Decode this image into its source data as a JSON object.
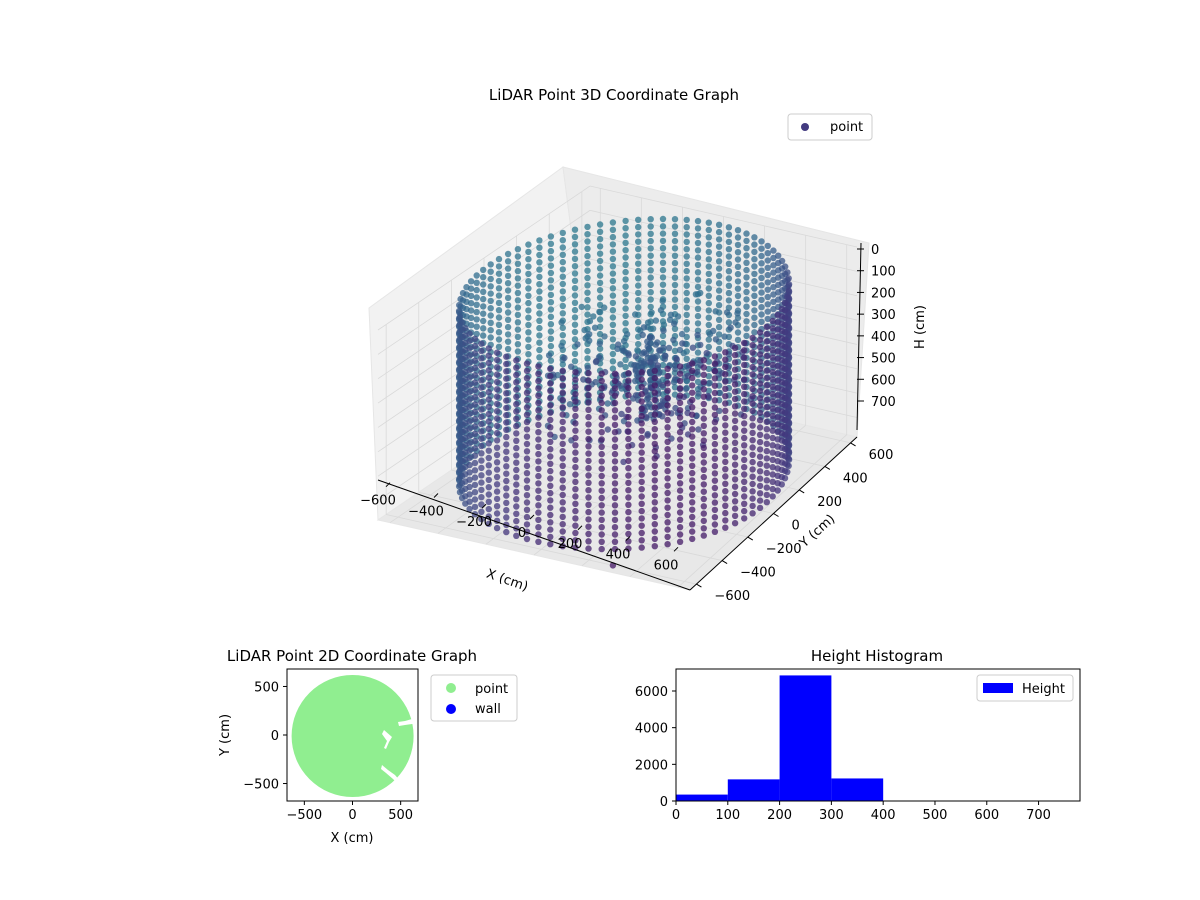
{
  "chart_data": [
    {
      "type": "scatter",
      "projection": "3d",
      "title": "LiDAR Point 3D Coordinate Graph",
      "xlabel": "X (cm)",
      "ylabel": "Y (cm)",
      "zlabel": "H (cm)",
      "xlim": [
        -650,
        650
      ],
      "ylim": [
        -650,
        650
      ],
      "zlim": [
        780,
        0
      ],
      "xticks": [
        -600,
        -400,
        -200,
        0,
        200,
        400,
        600
      ],
      "yticks": [
        -600,
        -400,
        -200,
        0,
        200,
        400,
        600
      ],
      "zticks": [
        0,
        100,
        200,
        300,
        400,
        500,
        600,
        700
      ],
      "grid": true,
      "legend": {
        "placement": "top-right",
        "entries": [
          {
            "label": "point",
            "color": "#433b80"
          }
        ]
      },
      "colormap": "viridis",
      "series": [
        {
          "name": "point",
          "structure": "cylindrical wall of points, radius ~620 cm, heights ~0-760 cm, with interior clutter",
          "wall_radius": 620,
          "height_range": [
            0,
            760
          ],
          "outlier": {
            "x": 300,
            "y": -600,
            "h": 780
          }
        }
      ]
    },
    {
      "type": "scatter",
      "title": "LiDAR Point 2D Coordinate Graph",
      "xlabel": "X (cm)",
      "ylabel": "Y (cm)",
      "xlim": [
        -680,
        680
      ],
      "ylim": [
        -680,
        680
      ],
      "xticks": [
        -500,
        0,
        500
      ],
      "yticks": [
        -500,
        0,
        500
      ],
      "xtick_labels": [
        "−500",
        "0",
        "500"
      ],
      "ytick_labels": [
        "−500",
        "0",
        "500"
      ],
      "legend": {
        "placement": "outside-right",
        "entries": [
          {
            "label": "point",
            "color": "#90ee90"
          },
          {
            "label": "wall",
            "color": "#0000ff"
          }
        ]
      },
      "series": [
        {
          "name": "point",
          "color": "#90ee90",
          "shape": "filled disc",
          "center": [
            0,
            0
          ],
          "radius": 620
        },
        {
          "name": "wall",
          "color": "#0000ff",
          "points": []
        }
      ]
    },
    {
      "type": "bar",
      "title": "Height Histogram",
      "xlim": [
        0,
        780
      ],
      "ylim": [
        0,
        7200
      ],
      "xticks": [
        0,
        100,
        200,
        300,
        400,
        500,
        600,
        700
      ],
      "yticks": [
        0,
        2000,
        4000,
        6000
      ],
      "legend": {
        "placement": "top-right",
        "entries": [
          {
            "label": "Height",
            "color": "#0000ff"
          }
        ]
      },
      "series": [
        {
          "name": "Height",
          "color": "#0000ff",
          "bins": [
            [
              0,
              100
            ],
            [
              100,
              200
            ],
            [
              200,
              300
            ],
            [
              300,
              400
            ],
            [
              400,
              500
            ],
            [
              500,
              600
            ],
            [
              600,
              700
            ],
            [
              700,
              800
            ]
          ],
          "values": [
            350,
            1180,
            6850,
            1230,
            0,
            0,
            0,
            0
          ]
        }
      ]
    }
  ]
}
